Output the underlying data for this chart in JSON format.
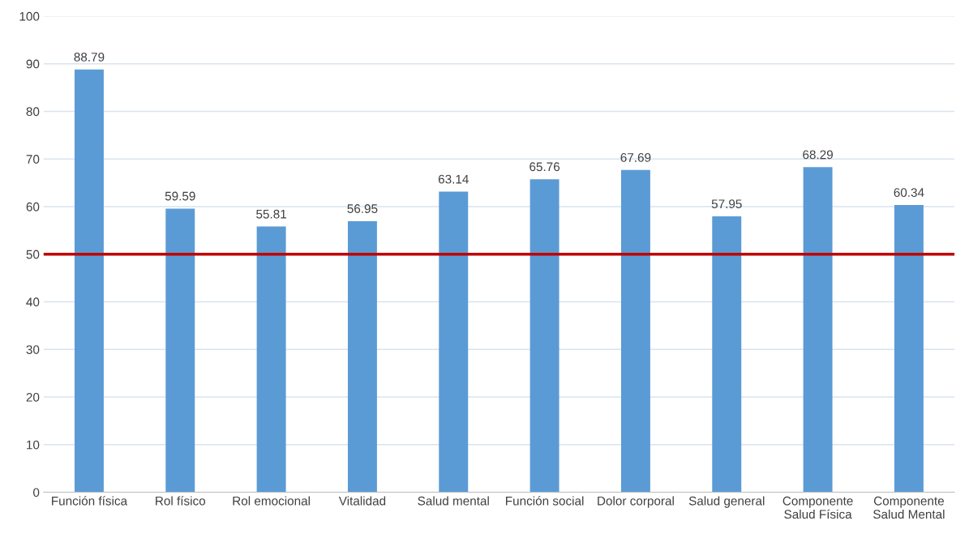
{
  "chart_data": {
    "type": "bar",
    "categories": [
      "Función física",
      "Rol físico",
      "Rol emocional",
      "Vitalidad",
      "Salud mental",
      "Función social",
      "Dolor corporal",
      "Salud general",
      "Componente\nSalud Física",
      "Componente\nSalud Mental"
    ],
    "values": [
      88.79,
      59.59,
      55.81,
      56.95,
      63.14,
      65.76,
      67.69,
      57.95,
      68.29,
      60.34
    ],
    "color": "#5b9bd5",
    "ylim": [
      0,
      100
    ],
    "yticks": [
      0,
      10,
      20,
      30,
      40,
      50,
      60,
      70,
      80,
      90,
      100
    ],
    "grid": "y",
    "data_labels": true,
    "ref_lines": [
      {
        "axis": "y",
        "value": 50,
        "color": "#c00000"
      }
    ]
  }
}
